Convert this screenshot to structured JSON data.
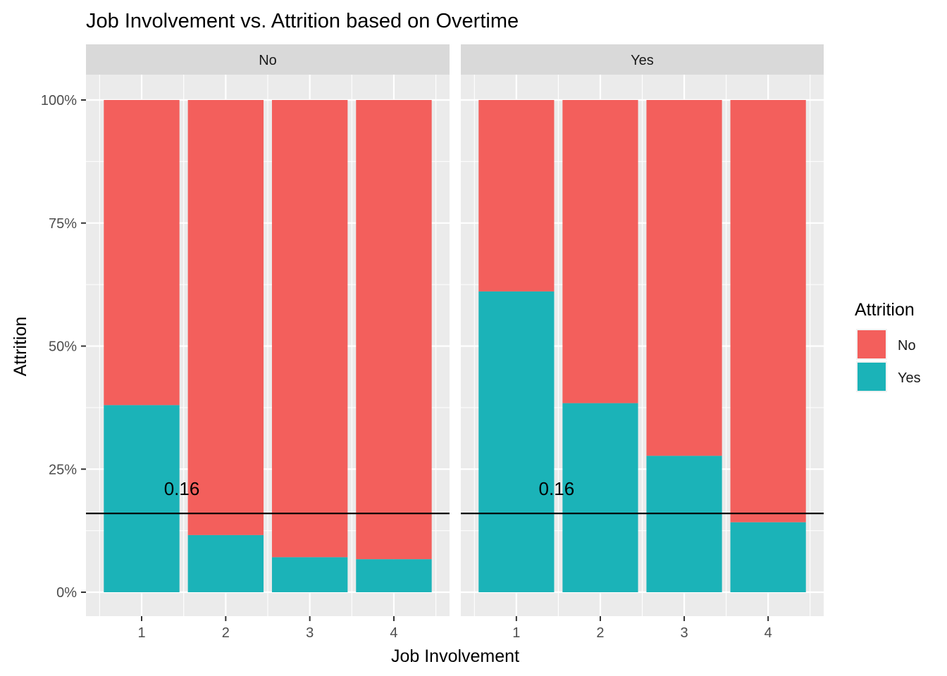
{
  "chart_data": {
    "type": "bar",
    "stacked": "percent",
    "title": "Job Involvement vs. Attrition based on Overtime",
    "xlabel": "Job Involvement",
    "ylabel": "Attrition",
    "categories": [
      "1",
      "2",
      "3",
      "4"
    ],
    "yticks": [
      "0%",
      "25%",
      "50%",
      "75%",
      "100%"
    ],
    "ylim": [
      0,
      100
    ],
    "grid": true,
    "legend": {
      "title": "Attrition",
      "placement": "right",
      "entries": [
        {
          "label": "No",
          "color": "#F35F5C"
        },
        {
          "label": "Yes",
          "color": "#1BB3B8"
        }
      ]
    },
    "reference_line": {
      "value": 16,
      "label": "0.16",
      "color": "#000000"
    },
    "panels": [
      {
        "strip": "No",
        "series": [
          {
            "name": "Yes",
            "values": [
              38,
              11.6,
              7.1,
              6.7
            ]
          },
          {
            "name": "No",
            "values": [
              62,
              88.4,
              92.9,
              93.3
            ]
          }
        ]
      },
      {
        "strip": "Yes",
        "series": [
          {
            "name": "Yes",
            "values": [
              61.1,
              38.4,
              27.7,
              14.2
            ]
          },
          {
            "name": "No",
            "values": [
              38.9,
              61.6,
              72.3,
              85.8
            ]
          }
        ]
      }
    ]
  }
}
